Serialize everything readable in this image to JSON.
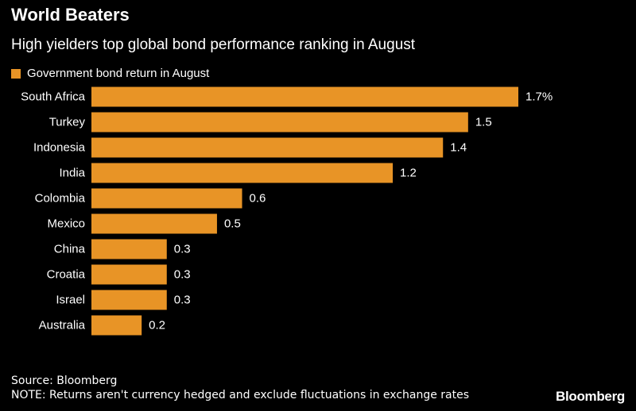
{
  "header": {
    "title": "World Beaters",
    "subtitle": "High yielders top global bond performance ranking in August"
  },
  "legend": {
    "label": "Government bond return in August"
  },
  "chart_data": {
    "type": "bar",
    "orientation": "horizontal",
    "categories": [
      "South Africa",
      "Turkey",
      "Indonesia",
      "India",
      "Colombia",
      "Mexico",
      "China",
      "Croatia",
      "Israel",
      "Australia"
    ],
    "values": [
      1.7,
      1.5,
      1.4,
      1.2,
      0.6,
      0.5,
      0.3,
      0.3,
      0.3,
      0.2
    ],
    "value_labels": [
      "1.7%",
      "1.5",
      "1.4",
      "1.2",
      "0.6",
      "0.5",
      "0.3",
      "0.3",
      "0.3",
      "0.2"
    ],
    "series_name": "Government bond return in August",
    "xlim": [
      0,
      1.7
    ],
    "xlabel": "",
    "ylabel": "",
    "grid": false,
    "legend_position": "top-left",
    "bar_color": "#E89426"
  },
  "footer": {
    "source": "Source: Bloomberg",
    "note": "NOTE: Returns aren't currency hedged and exclude fluctuations in exchange rates",
    "brand": "Bloomberg"
  }
}
